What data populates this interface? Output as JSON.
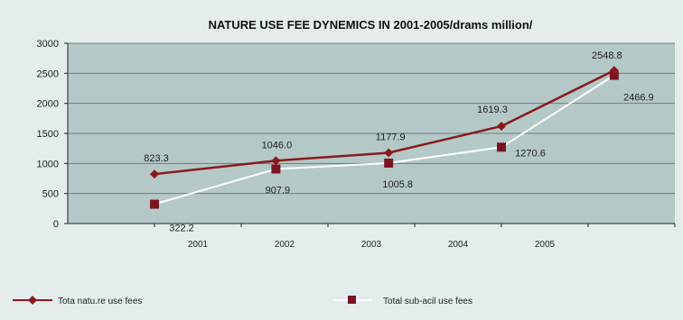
{
  "chart_data": {
    "type": "line",
    "title": "NATURE USE FEE DYNEMICS IN 2001-2005/drams million/",
    "xlabel": "",
    "ylabel": "",
    "ylim": [
      0,
      3000
    ],
    "y_ticks": [
      "0",
      "500",
      "1000",
      "1500",
      "2000",
      "2500",
      "3000"
    ],
    "y_tick_values": [
      0,
      500,
      1000,
      1500,
      2000,
      2500,
      3000
    ],
    "categories": [
      "2001",
      "2002",
      "2003",
      "2004",
      "2005"
    ],
    "grid": true,
    "legend_position": "bottom",
    "series": [
      {
        "name": "Tota natu.re use fees",
        "x": [
          2001,
          2002.4,
          2003.7,
          2005,
          2006.3
        ],
        "values": [
          823.3,
          1046.0,
          1177.9,
          1619.3,
          2548.8
        ],
        "labels": [
          "823.3",
          "1046.0",
          "1177.9",
          "1619.3",
          "2548.8"
        ],
        "color": "#8b1a1a",
        "marker": "diamond"
      },
      {
        "name": "Total sub-acil use fees",
        "x": [
          2001,
          2002.4,
          2003.7,
          2005,
          2006.3
        ],
        "values": [
          322.2,
          907.9,
          1005.8,
          1270.6,
          2466.9
        ],
        "labels": [
          "322.2",
          "907.9",
          "1005.8",
          "1270.6",
          "2466.9"
        ],
        "color": "#ffffff",
        "marker": "square",
        "marker_color": "#7a1420"
      }
    ]
  }
}
